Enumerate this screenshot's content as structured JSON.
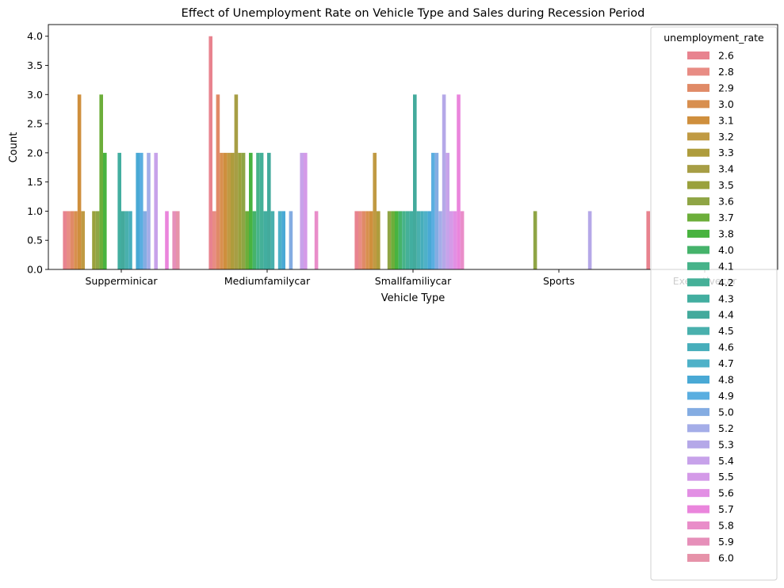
{
  "chart_data": {
    "type": "bar",
    "title": "Effect of Unemployment Rate on Vehicle Type and Sales during Recession Period",
    "xlabel": "Vehicle Type",
    "ylabel": "Count",
    "ylim": [
      0,
      4.2
    ],
    "yticks": [
      "0.0",
      "0.5",
      "1.0",
      "1.5",
      "2.0",
      "2.5",
      "3.0",
      "3.5",
      "4.0"
    ],
    "grid": false,
    "legend_position": "top-right",
    "legend_title": "unemployment_rate",
    "categories": [
      "Supperminicar",
      "Mediumfamilycar",
      "Smallfamiliycar",
      "Sports",
      "Executivecar"
    ],
    "series": [
      {
        "name": "2.6",
        "color": "#e8838f",
        "values": [
          1,
          4,
          1,
          null,
          1
        ]
      },
      {
        "name": "2.8",
        "color": "#e88c84",
        "values": [
          1,
          1,
          1,
          null,
          null
        ]
      },
      {
        "name": "2.9",
        "color": "#e08a67",
        "values": [
          1,
          3,
          1,
          null,
          null
        ]
      },
      {
        "name": "3.0",
        "color": "#d88f4f",
        "values": [
          1,
          2,
          1,
          null,
          null
        ]
      },
      {
        "name": "3.1",
        "color": "#cf8f3d",
        "values": [
          3,
          2,
          1,
          null,
          null
        ]
      },
      {
        "name": "3.2",
        "color": "#c09a43",
        "values": [
          1,
          2,
          2,
          null,
          null
        ]
      },
      {
        "name": "3.3",
        "color": "#ae9c3c",
        "values": [
          null,
          2,
          1,
          null,
          null
        ]
      },
      {
        "name": "3.4",
        "color": "#a79e45",
        "values": [
          null,
          3,
          null,
          null,
          null
        ]
      },
      {
        "name": "3.5",
        "color": "#9aa13c",
        "values": [
          1,
          2,
          null,
          null,
          null
        ]
      },
      {
        "name": "3.6",
        "color": "#8fa545",
        "values": [
          1,
          2,
          1,
          1,
          null
        ]
      },
      {
        "name": "3.7",
        "color": "#6cae3a",
        "values": [
          3,
          1,
          1,
          null,
          null
        ]
      },
      {
        "name": "3.8",
        "color": "#48b33f",
        "values": [
          2,
          2,
          1,
          null,
          null
        ]
      },
      {
        "name": "4.0",
        "color": "#45b36b",
        "values": [
          null,
          1,
          1,
          null,
          null
        ]
      },
      {
        "name": "4.1",
        "color": "#47b38a",
        "values": [
          null,
          2,
          1,
          null,
          null
        ]
      },
      {
        "name": "4.2",
        "color": "#45b098",
        "values": [
          null,
          2,
          1,
          null,
          null
        ]
      },
      {
        "name": "4.3",
        "color": "#42aea0",
        "values": [
          2,
          1,
          1,
          null,
          null
        ]
      },
      {
        "name": "4.4",
        "color": "#43aa9c",
        "values": [
          1,
          2,
          3,
          null,
          null
        ]
      },
      {
        "name": "4.5",
        "color": "#49b0ad",
        "values": [
          1,
          1,
          1,
          null,
          null
        ]
      },
      {
        "name": "4.6",
        "color": "#47aebb",
        "values": [
          1,
          null,
          1,
          null,
          null
        ]
      },
      {
        "name": "4.7",
        "color": "#4eb1c8",
        "values": [
          null,
          1,
          1,
          null,
          null
        ]
      },
      {
        "name": "4.8",
        "color": "#49a9d5",
        "values": [
          2,
          1,
          1,
          null,
          null
        ]
      },
      {
        "name": "4.9",
        "color": "#5aaee0",
        "values": [
          2,
          null,
          2,
          null,
          null
        ]
      },
      {
        "name": "5.0",
        "color": "#84ace2",
        "values": [
          1,
          1,
          2,
          null,
          null
        ]
      },
      {
        "name": "5.2",
        "color": "#a4ade8",
        "values": [
          2,
          null,
          1,
          null,
          null
        ]
      },
      {
        "name": "5.3",
        "color": "#b5a8e8",
        "values": [
          null,
          null,
          3,
          1,
          null
        ]
      },
      {
        "name": "5.4",
        "color": "#c7a2ea",
        "values": [
          2,
          2,
          2,
          null,
          null
        ]
      },
      {
        "name": "5.5",
        "color": "#d49ae8",
        "values": [
          null,
          2,
          1,
          null,
          null
        ]
      },
      {
        "name": "5.6",
        "color": "#e28fe4",
        "values": [
          null,
          null,
          1,
          null,
          null
        ]
      },
      {
        "name": "5.7",
        "color": "#ea85dc",
        "values": [
          1,
          null,
          3,
          null,
          null
        ]
      },
      {
        "name": "5.8",
        "color": "#e98dc9",
        "values": [
          null,
          1,
          1,
          null,
          null
        ]
      },
      {
        "name": "5.9",
        "color": "#e68fb9",
        "values": [
          1,
          null,
          null,
          null,
          null
        ]
      },
      {
        "name": "6.0",
        "color": "#e692a9",
        "values": [
          1,
          null,
          null,
          null,
          null
        ]
      }
    ]
  }
}
